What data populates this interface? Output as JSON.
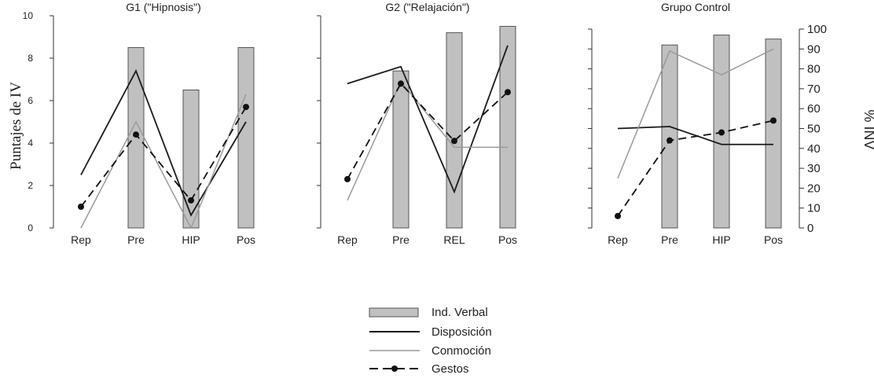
{
  "figure": {
    "left_axis_label": "Puntajes de IV",
    "right_axis_label": "% INV"
  },
  "chart_data": [
    {
      "type": "bar+line",
      "title": "G1 (\"Hipnosis\")",
      "categories": [
        "Rep",
        "Pre",
        "HIP",
        "Pos"
      ],
      "ylim": [
        0,
        10
      ],
      "yticks": [
        0,
        2,
        4,
        6,
        8,
        10
      ],
      "show_left_tick_labels": true,
      "show_right_axis": false,
      "series": [
        {
          "name": "Ind. Verbal",
          "kind": "bar",
          "values": [
            null,
            8.5,
            6.5,
            8.5
          ]
        },
        {
          "name": "Disposición",
          "kind": "line",
          "values": [
            2.5,
            7.4,
            0.6,
            5.0
          ]
        },
        {
          "name": "Conmoción",
          "kind": "line",
          "values": [
            0.0,
            5.0,
            0.0,
            6.3
          ]
        },
        {
          "name": "Gestos",
          "kind": "dashed-marker",
          "values": [
            1.0,
            4.4,
            1.3,
            5.7
          ]
        }
      ]
    },
    {
      "type": "bar+line",
      "title": "G2 (\"Relajación\")",
      "categories": [
        "Rep",
        "Pre",
        "REL",
        "Pos"
      ],
      "ylim": [
        0,
        10
      ],
      "yticks": [
        0,
        2,
        4,
        6,
        8,
        10
      ],
      "show_left_tick_labels": false,
      "show_right_axis": false,
      "series": [
        {
          "name": "Ind. Verbal",
          "kind": "bar",
          "values": [
            null,
            7.4,
            9.2,
            9.5
          ]
        },
        {
          "name": "Disposición",
          "kind": "line",
          "values": [
            6.8,
            7.6,
            1.7,
            8.6
          ]
        },
        {
          "name": "Conmoción",
          "kind": "line",
          "values": [
            1.3,
            6.9,
            3.8,
            3.8
          ]
        },
        {
          "name": "Gestos",
          "kind": "dashed-marker",
          "values": [
            2.3,
            6.8,
            4.1,
            6.4
          ]
        }
      ]
    },
    {
      "type": "bar+line",
      "title": "Grupo Control",
      "categories": [
        "Rep",
        "Pre",
        "HIP",
        "Pos"
      ],
      "ylim": [
        0,
        100
      ],
      "yticks": [
        0,
        10,
        20,
        30,
        40,
        50,
        60,
        70,
        80,
        90,
        100
      ],
      "show_left_tick_labels": false,
      "show_right_axis": true,
      "series": [
        {
          "name": "Ind. Verbal",
          "kind": "bar",
          "values": [
            null,
            92,
            97,
            95
          ]
        },
        {
          "name": "Disposición",
          "kind": "line",
          "values": [
            50,
            51,
            42,
            42
          ]
        },
        {
          "name": "Conmoción",
          "kind": "line",
          "values": [
            25,
            89,
            77,
            90
          ]
        },
        {
          "name": "Gestos",
          "kind": "dashed-marker",
          "values": [
            6,
            44,
            48,
            54
          ]
        }
      ]
    }
  ],
  "legend": [
    {
      "label": "Ind. Verbal",
      "symbol": "bar"
    },
    {
      "label": "Disposición",
      "symbol": "dark-line"
    },
    {
      "label": "Conmoción",
      "symbol": "gray-line"
    },
    {
      "label": "Gestos",
      "symbol": "dashed-marker"
    }
  ],
  "colors": {
    "bar_fill": "#c0c0c0",
    "bar_stroke": "#555555",
    "disposicion": "#1a1a1a",
    "conmocion": "#9a9a9a",
    "gestos": "#111111",
    "axis": "#333333"
  }
}
